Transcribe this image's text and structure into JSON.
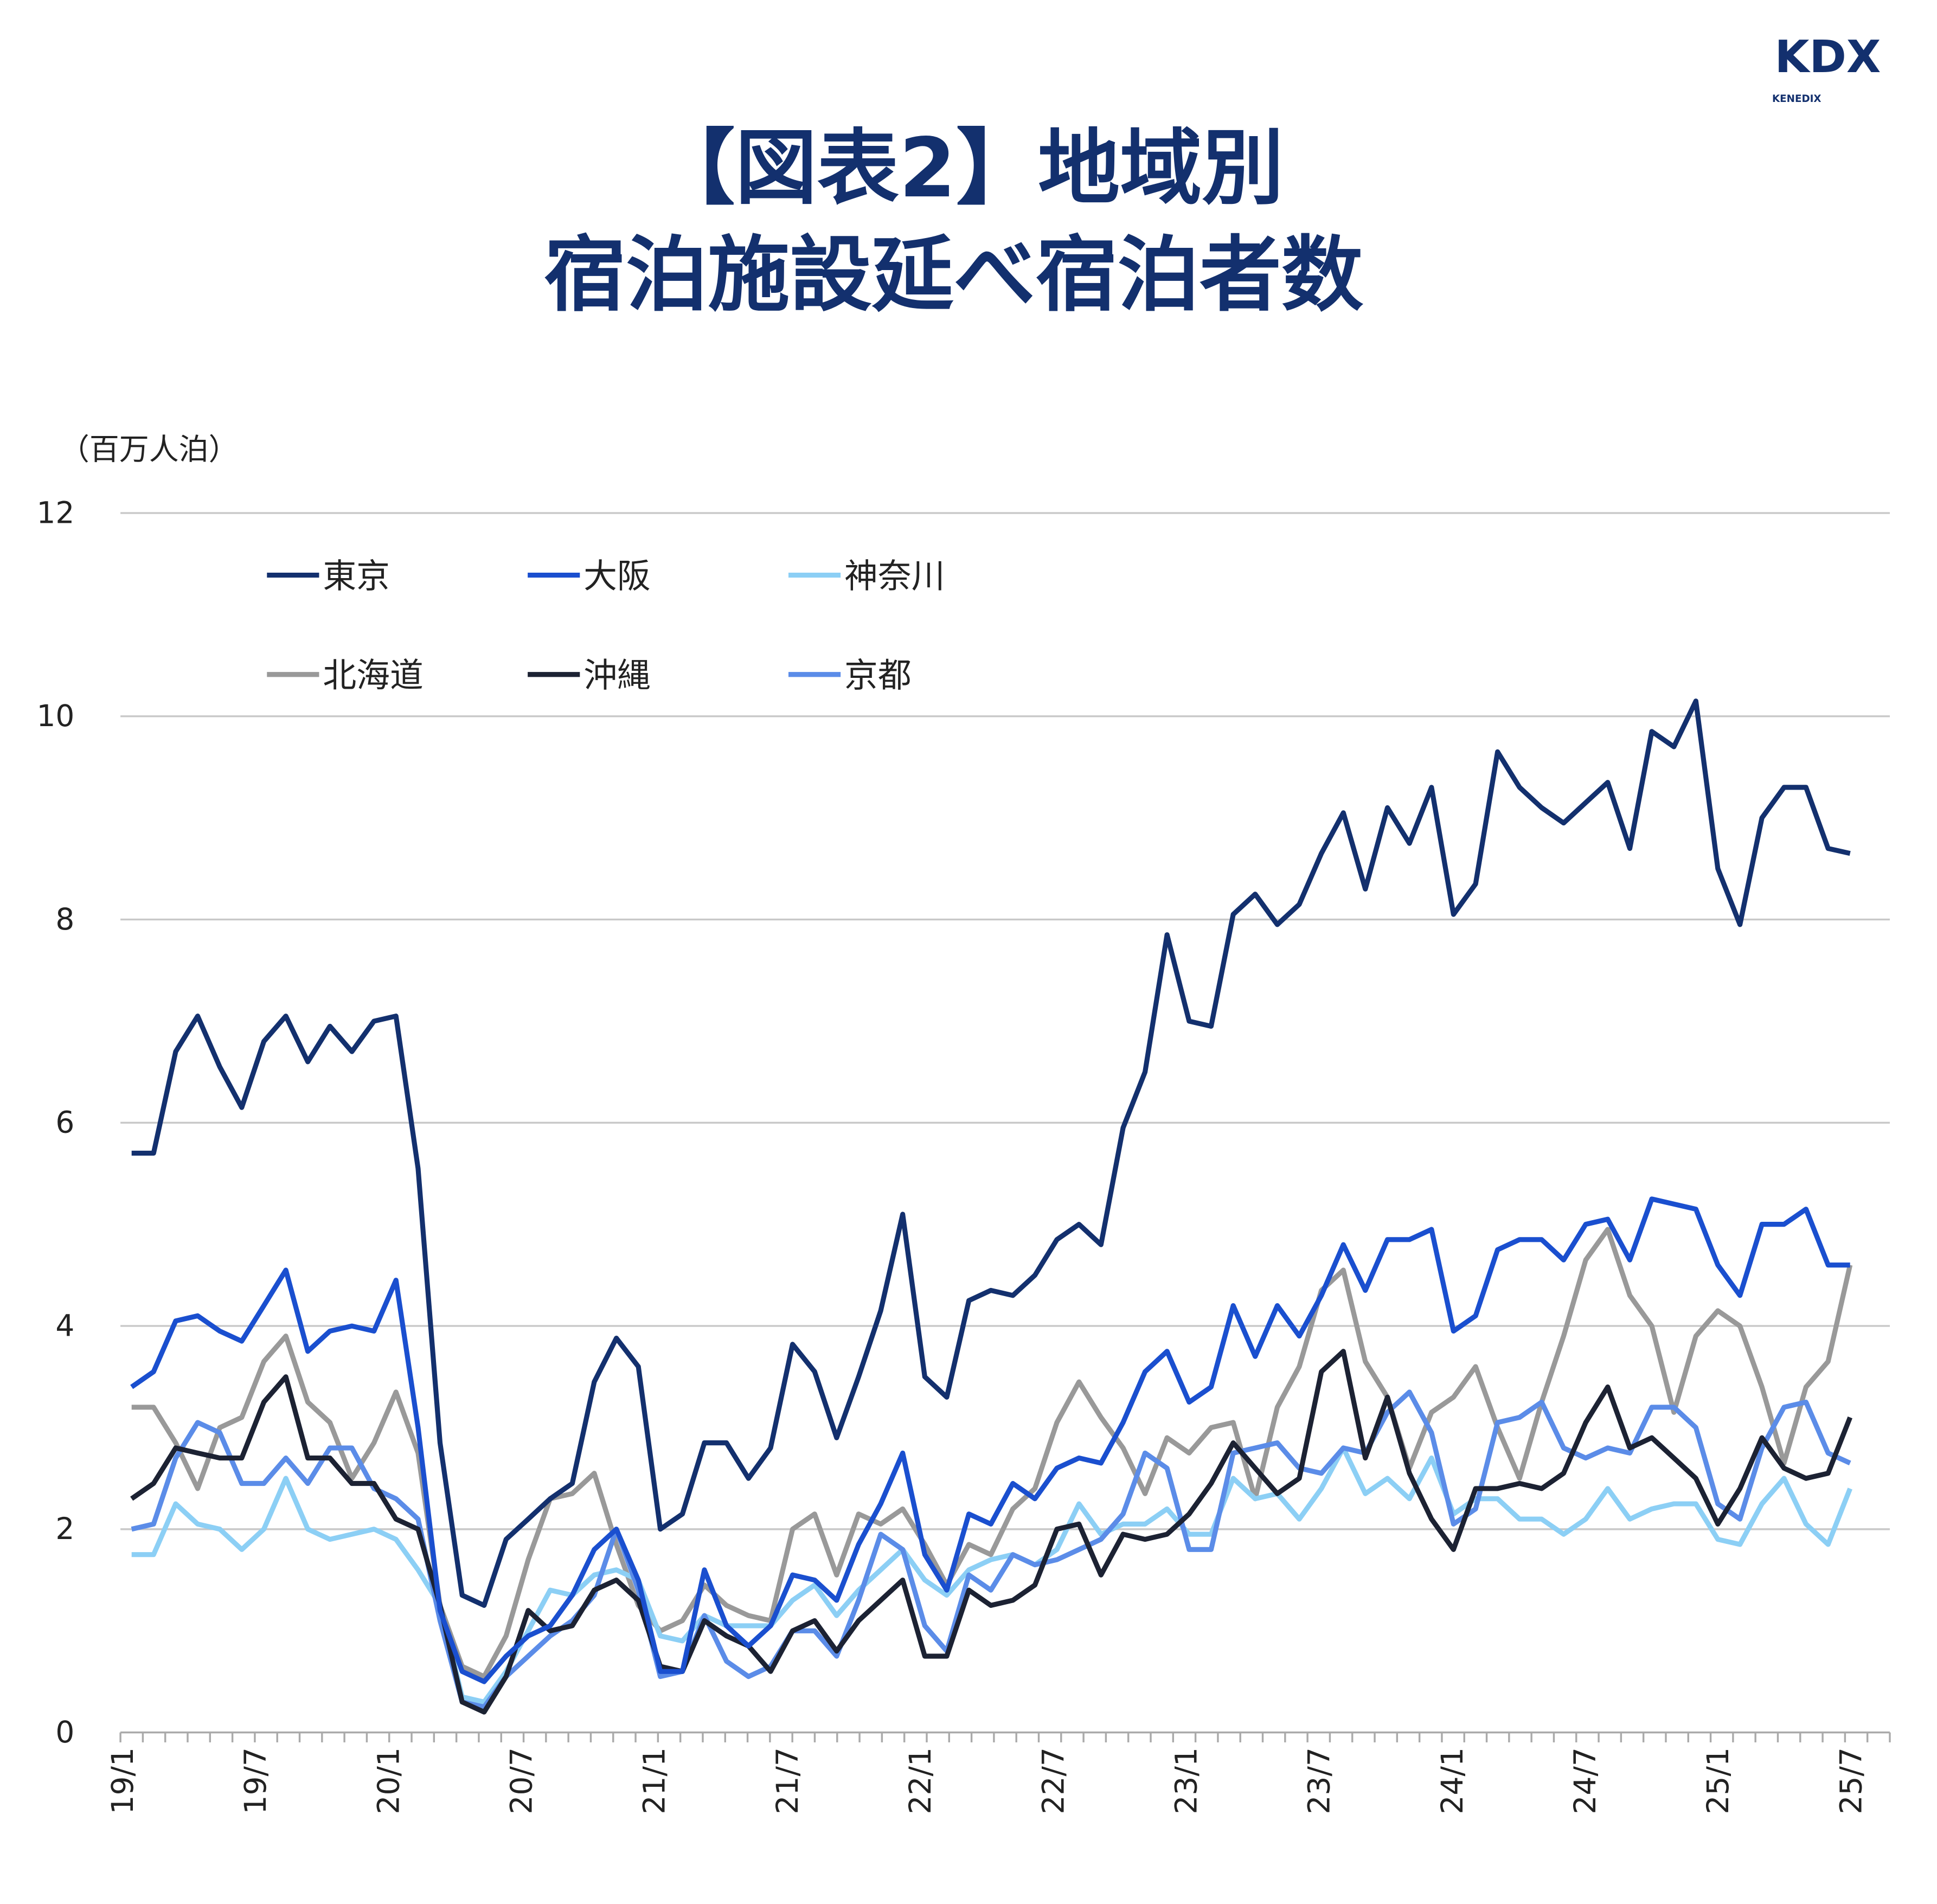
{
  "logo": {
    "text": "KDX",
    "subtext": "KENEDIX"
  },
  "chart_data": {
    "type": "line",
    "title": "【図表2】地域別",
    "subtitle": "宿泊施設延べ宿泊者数",
    "ylabel": "（百万人泊）",
    "xlabel": "",
    "ylim": [
      0,
      12
    ],
    "yticks": [
      0,
      2,
      4,
      6,
      8,
      10,
      12
    ],
    "grid": true,
    "legend_position": "top-left",
    "x_start": "19/1",
    "x_end": "25/7",
    "xtick_labels": [
      "19/1",
      "19/7",
      "20/1",
      "20/7",
      "21/1",
      "21/7",
      "22/1",
      "22/7",
      "23/1",
      "23/7",
      "24/1",
      "24/7",
      "25/1",
      "25/7"
    ],
    "series": [
      {
        "name": "東京",
        "color": "#13306e",
        "values": [
          5.7,
          5.7,
          6.7,
          7.05,
          6.55,
          6.15,
          6.8,
          7.05,
          6.6,
          6.95,
          6.7,
          7.0,
          7.05,
          5.55,
          2.85,
          1.35,
          1.25,
          1.9,
          2.1,
          2.3,
          2.45,
          3.45,
          3.88,
          3.6,
          2.0,
          2.15,
          2.85,
          2.85,
          2.5,
          2.8,
          3.82,
          3.55,
          2.9,
          3.5,
          4.15,
          5.1,
          3.5,
          3.3,
          4.25,
          4.35,
          4.3,
          4.5,
          4.85,
          5.0,
          4.8,
          5.95,
          6.5,
          7.85,
          7.0,
          6.95,
          8.05,
          8.25,
          7.95,
          8.15,
          8.65,
          9.05,
          8.3,
          9.1,
          8.75,
          9.3,
          8.05,
          8.35,
          9.65,
          9.3,
          9.1,
          8.95,
          9.15,
          9.35,
          8.7,
          9.85,
          9.7,
          10.15,
          8.5,
          7.95,
          9.0,
          9.3,
          9.3,
          8.7,
          8.65
        ]
      },
      {
        "name": "大阪",
        "color": "#1a4fcf",
        "values": [
          3.4,
          3.55,
          4.05,
          4.1,
          3.95,
          3.85,
          4.2,
          4.55,
          3.75,
          3.95,
          4.0,
          3.95,
          4.45,
          3.0,
          1.2,
          0.6,
          0.5,
          0.75,
          0.95,
          1.05,
          1.35,
          1.8,
          2.0,
          1.5,
          0.6,
          0.6,
          1.6,
          1.05,
          0.85,
          1.05,
          1.55,
          1.5,
          1.3,
          1.85,
          2.25,
          2.75,
          1.75,
          1.4,
          2.15,
          2.05,
          2.45,
          2.3,
          2.6,
          2.7,
          2.65,
          3.05,
          3.55,
          3.75,
          3.25,
          3.4,
          4.2,
          3.7,
          4.2,
          3.9,
          4.3,
          4.8,
          4.35,
          4.85,
          4.85,
          4.95,
          3.95,
          4.1,
          4.75,
          4.85,
          4.85,
          4.65,
          5.0,
          5.05,
          4.65,
          5.25,
          5.2,
          5.15,
          4.6,
          4.3,
          5.0,
          5.0,
          5.15,
          4.6,
          4.6
        ]
      },
      {
        "name": "神奈川",
        "color": "#8ccff5",
        "values": [
          1.75,
          1.75,
          2.25,
          2.05,
          2.0,
          1.8,
          2.0,
          2.5,
          2.0,
          1.9,
          1.95,
          2.0,
          1.9,
          1.6,
          1.25,
          0.35,
          0.3,
          0.6,
          1.0,
          1.4,
          1.35,
          1.55,
          1.6,
          1.5,
          0.95,
          0.9,
          1.15,
          1.05,
          1.05,
          1.05,
          1.3,
          1.45,
          1.15,
          1.4,
          1.6,
          1.8,
          1.5,
          1.35,
          1.6,
          1.7,
          1.75,
          1.65,
          1.8,
          2.25,
          1.95,
          2.05,
          2.05,
          2.2,
          1.95,
          1.95,
          2.5,
          2.3,
          2.35,
          2.1,
          2.4,
          2.8,
          2.35,
          2.5,
          2.3,
          2.7,
          2.15,
          2.3,
          2.3,
          2.1,
          2.1,
          1.95,
          2.1,
          2.4,
          2.1,
          2.2,
          2.25,
          2.25,
          1.9,
          1.85,
          2.25,
          2.5,
          2.05,
          1.85,
          2.4
        ]
      },
      {
        "name": "北海道",
        "color": "#999999",
        "values": [
          3.2,
          3.2,
          2.85,
          2.4,
          3.0,
          3.1,
          3.65,
          3.9,
          3.25,
          3.05,
          2.5,
          2.85,
          3.35,
          2.75,
          1.25,
          0.65,
          0.55,
          0.95,
          1.7,
          2.3,
          2.35,
          2.55,
          1.85,
          1.25,
          1.0,
          1.1,
          1.45,
          1.25,
          1.15,
          1.1,
          2.0,
          2.15,
          1.55,
          2.15,
          2.05,
          2.2,
          1.85,
          1.45,
          1.85,
          1.75,
          2.2,
          2.4,
          3.05,
          3.45,
          3.1,
          2.8,
          2.35,
          2.9,
          2.75,
          3.0,
          3.05,
          2.3,
          3.2,
          3.6,
          4.35,
          4.55,
          3.65,
          3.3,
          2.6,
          3.15,
          3.3,
          3.6,
          3.0,
          2.5,
          3.25,
          3.9,
          4.65,
          4.95,
          4.3,
          4.0,
          3.15,
          3.9,
          4.15,
          4.0,
          3.4,
          2.65,
          3.4,
          3.65,
          4.6
        ]
      },
      {
        "name": "沖縄",
        "color": "#1c2233",
        "values": [
          2.3,
          2.45,
          2.8,
          2.75,
          2.7,
          2.7,
          3.25,
          3.5,
          2.7,
          2.7,
          2.45,
          2.45,
          2.1,
          2.0,
          1.25,
          0.3,
          0.2,
          0.55,
          1.2,
          1.0,
          1.05,
          1.4,
          1.5,
          1.3,
          0.65,
          0.6,
          1.1,
          0.95,
          0.85,
          0.6,
          1.0,
          1.1,
          0.8,
          1.1,
          1.3,
          1.5,
          0.75,
          0.75,
          1.4,
          1.25,
          1.3,
          1.45,
          2.0,
          2.05,
          1.55,
          1.95,
          1.9,
          1.95,
          2.15,
          2.45,
          2.85,
          2.6,
          2.35,
          2.5,
          3.55,
          3.75,
          2.7,
          3.3,
          2.55,
          2.1,
          1.8,
          2.4,
          2.4,
          2.45,
          2.4,
          2.55,
          3.05,
          3.4,
          2.8,
          2.9,
          2.7,
          2.5,
          2.05,
          2.4,
          2.9,
          2.6,
          2.5,
          2.55,
          3.1
        ]
      },
      {
        "name": "京都",
        "color": "#5b8ce8",
        "values": [
          2.0,
          2.05,
          2.7,
          3.05,
          2.95,
          2.45,
          2.45,
          2.7,
          2.45,
          2.8,
          2.8,
          2.4,
          2.3,
          2.1,
          1.1,
          0.3,
          0.25,
          0.55,
          0.75,
          0.95,
          1.1,
          1.35,
          2.0,
          1.4,
          0.55,
          0.6,
          1.15,
          0.7,
          0.55,
          0.65,
          1.0,
          1.0,
          0.75,
          1.3,
          1.95,
          1.8,
          1.05,
          0.8,
          1.55,
          1.4,
          1.75,
          1.65,
          1.7,
          1.8,
          1.9,
          2.15,
          2.75,
          2.6,
          1.8,
          1.8,
          2.75,
          2.8,
          2.85,
          2.6,
          2.55,
          2.8,
          2.75,
          3.15,
          3.35,
          2.95,
          2.05,
          2.2,
          3.05,
          3.1,
          3.25,
          2.8,
          2.7,
          2.8,
          2.75,
          3.2,
          3.2,
          3.0,
          2.25,
          2.1,
          2.8,
          3.2,
          3.25,
          2.75,
          2.65
        ]
      }
    ]
  }
}
